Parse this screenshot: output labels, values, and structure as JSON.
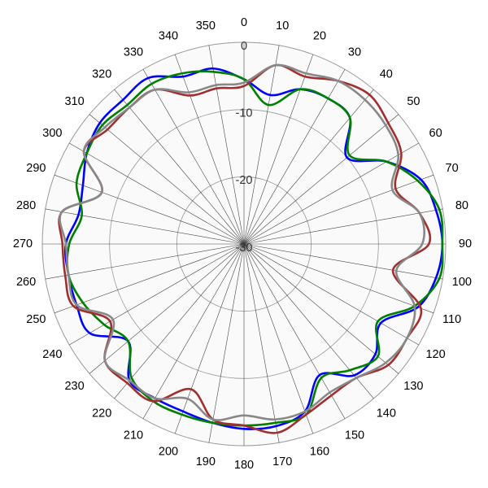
{
  "chart_data": {
    "type": "polar-line",
    "title": "",
    "angle_unit": "degrees",
    "angle_ticks": [
      "0",
      "10",
      "20",
      "30",
      "40",
      "50",
      "60",
      "70",
      "80",
      "90",
      "100",
      "110",
      "120",
      "130",
      "140",
      "150",
      "160",
      "170",
      "180",
      "190",
      "200",
      "210",
      "220",
      "230",
      "240",
      "250",
      "260",
      "270",
      "280",
      "290",
      "300",
      "310",
      "320",
      "330",
      "340",
      "350"
    ],
    "radial_ticks": [
      "0",
      "-10",
      "-20",
      "-30"
    ],
    "rlim": [
      -30,
      0
    ],
    "grid": true,
    "background_color": "#fafafa",
    "grid_color": "#999999",
    "legend": "none",
    "series": [
      {
        "color": "#0000ff",
        "angles": [
          0,
          10,
          20,
          30,
          40,
          50,
          60,
          70,
          80,
          90,
          100,
          110,
          120,
          130,
          140,
          150,
          160,
          170,
          180,
          190,
          200,
          210,
          220,
          230,
          240,
          250,
          260,
          270,
          280,
          290,
          300,
          310,
          320,
          330,
          340,
          350
        ],
        "values": [
          -5.5,
          -7.5,
          -5.5,
          -5.0,
          -5.5,
          -10.0,
          -5.5,
          -2.0,
          -1.0,
          -0.5,
          -1.0,
          -2.5,
          -6.5,
          -4.5,
          -4.5,
          -7.5,
          -3.5,
          -2.5,
          -2.5,
          -3.0,
          -3.5,
          -3.5,
          -3.5,
          -7.5,
          -3.5,
          -3.5,
          -3.5,
          -3.5,
          -5.0,
          -4.5,
          -3.0,
          -2.0,
          -2.0,
          -1.5,
          -3.5,
          -3.5
        ]
      },
      {
        "color": "#008000",
        "angles": [
          0,
          10,
          20,
          30,
          40,
          50,
          60,
          70,
          80,
          90,
          100,
          110,
          120,
          130,
          140,
          150,
          160,
          170,
          180,
          190,
          200,
          210,
          220,
          230,
          240,
          250,
          260,
          270,
          280,
          290,
          300,
          310,
          320,
          330,
          340,
          350
        ],
        "values": [
          -5.5,
          -9.0,
          -5.5,
          -5.0,
          -5.5,
          -9.5,
          -5.5,
          -2.5,
          -0.5,
          -0.5,
          -0.5,
          -3.0,
          -7.0,
          -4.0,
          -5.5,
          -7.0,
          -3.0,
          -3.0,
          -3.0,
          -3.0,
          -3.0,
          -3.0,
          -4.0,
          -7.5,
          -6.0,
          -4.5,
          -3.5,
          -4.0,
          -5.5,
          -3.5,
          -3.0,
          -2.5,
          -3.0,
          -2.5,
          -3.0,
          -4.0
        ]
      },
      {
        "color": "#a03030",
        "angles": [
          0,
          10,
          20,
          30,
          40,
          50,
          60,
          70,
          80,
          90,
          100,
          110,
          120,
          130,
          140,
          150,
          160,
          170,
          180,
          190,
          200,
          210,
          220,
          230,
          240,
          250,
          260,
          270,
          280,
          290,
          300,
          310,
          320,
          330,
          340,
          350
        ],
        "values": [
          -6.5,
          -3.0,
          -3.5,
          -2.0,
          -1.0,
          -2.0,
          -3.0,
          -6.0,
          -3.5,
          -2.5,
          -7.5,
          -2.0,
          -2.0,
          -2.0,
          -4.0,
          -4.0,
          -3.0,
          -1.5,
          -3.0,
          -3.5,
          -7.0,
          -3.0,
          -3.0,
          -3.0,
          -7.0,
          -3.0,
          -3.0,
          -3.0,
          -2.5,
          -7.5,
          -2.5,
          -3.5,
          -3.5,
          -3.5,
          -6.5,
          -6.5
        ]
      },
      {
        "color": "#888888",
        "angles": [
          0,
          10,
          20,
          30,
          40,
          50,
          60,
          70,
          80,
          90,
          100,
          110,
          120,
          130,
          140,
          150,
          160,
          170,
          180,
          190,
          200,
          210,
          220,
          230,
          240,
          250,
          260,
          270,
          280,
          290,
          300,
          310,
          320,
          330,
          340,
          350
        ],
        "values": [
          -6.0,
          -3.0,
          -3.0,
          -2.0,
          -2.0,
          -2.5,
          -3.5,
          -6.5,
          -3.5,
          -3.5,
          -7.0,
          -3.0,
          -2.0,
          -2.5,
          -4.0,
          -4.5,
          -3.5,
          -3.5,
          -4.5,
          -3.5,
          -5.5,
          -3.5,
          -3.5,
          -3.0,
          -7.5,
          -3.5,
          -3.5,
          -3.5,
          -2.5,
          -7.5,
          -2.5,
          -3.0,
          -3.5,
          -3.5,
          -6.0,
          -6.0
        ]
      }
    ]
  }
}
